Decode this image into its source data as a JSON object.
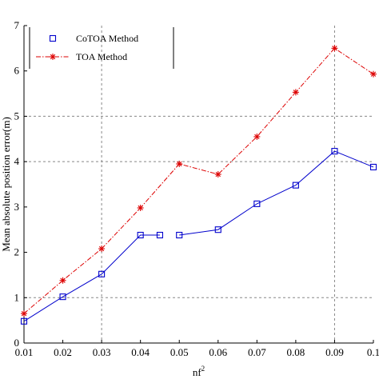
{
  "chart_data": {
    "type": "line",
    "title": "",
    "xlabel": "nf",
    "xlabel_sup": "2",
    "ylabel": "Mean absolute position error(m)",
    "xlim": [
      0.01,
      0.1
    ],
    "ylim": [
      0,
      7
    ],
    "x_tick_labels": [
      "0.01",
      "0.02",
      "0.03",
      "0.04",
      "0.05",
      "0.06",
      "0.07",
      "0.08",
      "0.09",
      "0.1"
    ],
    "y_tick_labels": [
      "0",
      "1",
      "2",
      "3",
      "4",
      "5",
      "6",
      "7"
    ],
    "grid": "partial dashed",
    "legend": "top-left",
    "series": [
      {
        "name": "CoTOA Method",
        "color": "#0000cc",
        "marker": "square",
        "line": "solid",
        "segments": [
          {
            "x": [
              0.01,
              0.02,
              0.03,
              0.04,
              0.045
            ],
            "y": [
              0.48,
              1.02,
              1.52,
              2.38,
              2.38
            ]
          },
          {
            "x": [
              0.05,
              0.06,
              0.07,
              0.08,
              0.09,
              0.1
            ],
            "y": [
              2.38,
              2.5,
              3.07,
              3.48,
              4.23,
              3.88
            ]
          }
        ]
      },
      {
        "name": "TOA Method",
        "color": "#dd0000",
        "marker": "star",
        "line": "dash-dot",
        "segments": [
          {
            "x": [
              0.01,
              0.02,
              0.03,
              0.04,
              0.05,
              0.06,
              0.07,
              0.08,
              0.09,
              0.1
            ],
            "y": [
              0.65,
              1.38,
              2.08,
              2.98,
              3.95,
              3.72,
              4.55,
              5.53,
              6.5,
              5.93
            ]
          }
        ]
      }
    ]
  }
}
